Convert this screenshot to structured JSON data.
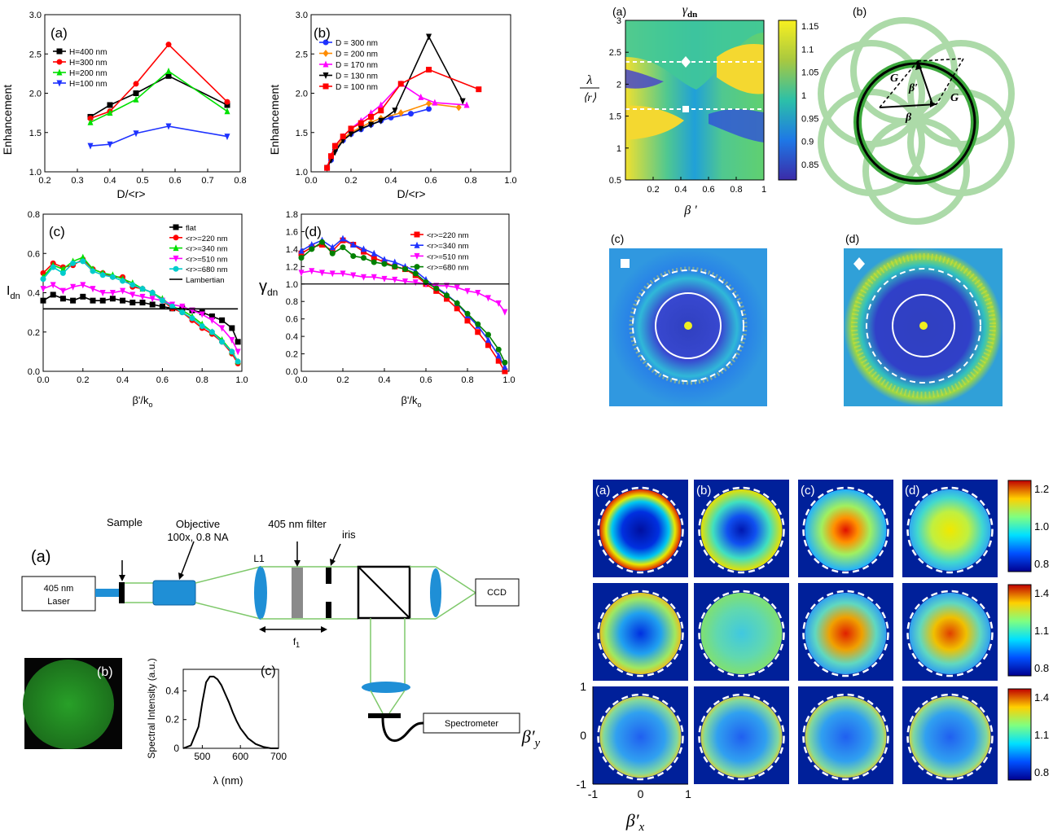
{
  "colors": {
    "red": "#ff0000",
    "black": "#000000",
    "green": "#00e000",
    "blue": "#1e32ff",
    "magenta": "#ff00ff",
    "darkgreen": "#008000",
    "orange": "#ff8c00",
    "cyan": "#00cccc",
    "beam": "#7ec86a",
    "optic": "#1f8fd6",
    "ring": "#9ed49a"
  },
  "chart_data": [
    {
      "panel": "(a)",
      "type": "line",
      "xlabel": "D/<r>",
      "ylabel": "Enhancement",
      "xlim": [
        0.2,
        0.8
      ],
      "ylim": [
        1.0,
        3.0
      ],
      "xticks": [
        "0.2",
        "0.3",
        "0.4",
        "0.5",
        "0.6",
        "0.7",
        "0.8"
      ],
      "yticks": [
        "1.0",
        "1.5",
        "2.0",
        "2.5",
        "3.0"
      ],
      "x": [
        0.34,
        0.4,
        0.48,
        0.58,
        0.76
      ],
      "series": [
        {
          "name": "H=400 nm",
          "color": "#000000",
          "marker": "square",
          "values": [
            1.7,
            1.85,
            2.0,
            2.22,
            1.85
          ]
        },
        {
          "name": "H=300 nm",
          "color": "#ff0000",
          "marker": "circle",
          "values": [
            1.68,
            1.77,
            2.12,
            2.62,
            1.89
          ]
        },
        {
          "name": "H=200 nm",
          "color": "#00e000",
          "marker": "triangle",
          "values": [
            1.63,
            1.75,
            1.92,
            2.28,
            1.77
          ]
        },
        {
          "name": "H=100 nm",
          "color": "#1e32ff",
          "marker": "triangle-down",
          "values": [
            1.33,
            1.35,
            1.49,
            1.58,
            1.45
          ]
        }
      ]
    },
    {
      "panel": "(b)",
      "type": "line",
      "xlabel": "D/<r>",
      "ylabel": "Enhancement",
      "xlim": [
        0.0,
        1.0
      ],
      "ylim": [
        1.0,
        3.0
      ],
      "xticks": [
        "0.0",
        "0.2",
        "0.4",
        "0.6",
        "0.8",
        "1.0"
      ],
      "yticks": [
        "1.0",
        "1.5",
        "2.0",
        "2.5",
        "3.0"
      ],
      "series": [
        {
          "name": "D = 300 nm",
          "color": "#1e32ff",
          "marker": "circle",
          "x": [
            0.08,
            0.1,
            0.12,
            0.16,
            0.2,
            0.25,
            0.3,
            0.35,
            0.4,
            0.5,
            0.59
          ],
          "values": [
            1.05,
            1.15,
            1.28,
            1.4,
            1.48,
            1.54,
            1.6,
            1.65,
            1.69,
            1.74,
            1.8
          ]
        },
        {
          "name": "D = 200 nm",
          "color": "#ff8c00",
          "marker": "diamond",
          "x": [
            0.08,
            0.1,
            0.12,
            0.16,
            0.2,
            0.25,
            0.3,
            0.35,
            0.45,
            0.59,
            0.74
          ],
          "values": [
            1.05,
            1.18,
            1.3,
            1.42,
            1.5,
            1.57,
            1.63,
            1.68,
            1.75,
            1.87,
            1.82
          ]
        },
        {
          "name": "D = 170 nm",
          "color": "#ff00ff",
          "marker": "triangle",
          "x": [
            0.08,
            0.1,
            0.12,
            0.16,
            0.2,
            0.25,
            0.3,
            0.35,
            0.45,
            0.55,
            0.62,
            0.78
          ],
          "values": [
            1.05,
            1.2,
            1.33,
            1.45,
            1.55,
            1.65,
            1.75,
            1.85,
            2.12,
            1.95,
            1.88,
            1.85
          ]
        },
        {
          "name": "D = 130 nm",
          "color": "#000000",
          "marker": "triangle-down",
          "x": [
            0.08,
            0.1,
            0.12,
            0.16,
            0.2,
            0.25,
            0.3,
            0.35,
            0.42,
            0.59,
            0.76
          ],
          "values": [
            1.05,
            1.15,
            1.25,
            1.4,
            1.48,
            1.55,
            1.6,
            1.65,
            1.78,
            2.72,
            1.9
          ]
        },
        {
          "name": "D = 100 nm",
          "color": "#ff0000",
          "marker": "square",
          "x": [
            0.08,
            0.1,
            0.12,
            0.16,
            0.2,
            0.25,
            0.3,
            0.35,
            0.45,
            0.59,
            0.84
          ],
          "values": [
            1.05,
            1.2,
            1.33,
            1.45,
            1.55,
            1.62,
            1.7,
            1.78,
            2.12,
            2.3,
            2.05
          ]
        }
      ]
    },
    {
      "panel": "(c)",
      "type": "line",
      "xlabel": "β'/k₀",
      "ylabel": "I_dn",
      "xlim": [
        0.0,
        1.0
      ],
      "ylim": [
        0.0,
        0.8
      ],
      "xticks": [
        "0.0",
        "0.2",
        "0.4",
        "0.6",
        "0.8",
        "1.0"
      ],
      "yticks": [
        "0.0",
        "0.2",
        "0.4",
        "0.6",
        "0.8"
      ],
      "x": [
        0,
        0.05,
        0.1,
        0.15,
        0.2,
        0.25,
        0.3,
        0.35,
        0.4,
        0.45,
        0.5,
        0.55,
        0.6,
        0.65,
        0.7,
        0.75,
        0.8,
        0.85,
        0.9,
        0.95,
        0.98
      ],
      "series": [
        {
          "name": "flat",
          "color": "#000000",
          "marker": "square",
          "values": [
            0.36,
            0.39,
            0.37,
            0.36,
            0.38,
            0.36,
            0.36,
            0.37,
            0.36,
            0.35,
            0.35,
            0.34,
            0.33,
            0.32,
            0.32,
            0.31,
            0.3,
            0.28,
            0.26,
            0.22,
            0.15
          ]
        },
        {
          "name": "<r>=220 nm",
          "color": "#ff0000",
          "marker": "circle",
          "values": [
            0.5,
            0.55,
            0.53,
            0.54,
            0.57,
            0.52,
            0.5,
            0.48,
            0.48,
            0.43,
            0.42,
            0.4,
            0.36,
            0.32,
            0.3,
            0.26,
            0.22,
            0.19,
            0.15,
            0.09,
            0.04
          ]
        },
        {
          "name": "<r>=340 nm",
          "color": "#00e000",
          "marker": "triangle",
          "values": [
            0.48,
            0.54,
            0.52,
            0.56,
            0.58,
            0.52,
            0.5,
            0.49,
            0.47,
            0.45,
            0.42,
            0.4,
            0.37,
            0.33,
            0.31,
            0.28,
            0.24,
            0.2,
            0.16,
            0.1,
            0.05
          ]
        },
        {
          "name": "<r>=510 nm",
          "color": "#ff00ff",
          "marker": "triangle-down",
          "values": [
            0.42,
            0.44,
            0.41,
            0.43,
            0.44,
            0.42,
            0.4,
            0.4,
            0.41,
            0.39,
            0.38,
            0.37,
            0.36,
            0.34,
            0.33,
            0.31,
            0.29,
            0.26,
            0.22,
            0.16,
            0.1
          ]
        },
        {
          "name": "<r>=680 nm",
          "color": "#00cccc",
          "marker": "circle",
          "values": [
            0.47,
            0.53,
            0.5,
            0.55,
            0.56,
            0.51,
            0.49,
            0.48,
            0.46,
            0.44,
            0.42,
            0.4,
            0.36,
            0.33,
            0.3,
            0.27,
            0.23,
            0.2,
            0.15,
            0.1,
            0.05
          ]
        },
        {
          "name": "Lambertian",
          "color": "#000000",
          "marker": "none",
          "values": [
            0.318,
            0.318,
            0.318,
            0.318,
            0.318,
            0.318,
            0.318,
            0.318,
            0.318,
            0.318,
            0.318,
            0.318,
            0.318,
            0.318,
            0.318,
            0.318,
            0.318,
            0.318,
            0.318,
            0.318,
            0.318
          ]
        }
      ]
    },
    {
      "panel": "(d)",
      "type": "line",
      "xlabel": "β'/k₀",
      "ylabel": "γ_dn",
      "xlim": [
        0.0,
        1.0
      ],
      "ylim": [
        0.0,
        1.8
      ],
      "xticks": [
        "0.0",
        "0.2",
        "0.4",
        "0.6",
        "0.8",
        "1.0"
      ],
      "yticks": [
        "0.0",
        "0.2",
        "0.4",
        "0.6",
        "0.8",
        "1.0",
        "1.2",
        "1.4",
        "1.6",
        "1.8"
      ],
      "x": [
        0,
        0.05,
        0.1,
        0.15,
        0.2,
        0.25,
        0.3,
        0.35,
        0.4,
        0.45,
        0.5,
        0.55,
        0.6,
        0.65,
        0.7,
        0.75,
        0.8,
        0.85,
        0.9,
        0.95,
        0.98
      ],
      "series": [
        {
          "name": "<r>=220 nm",
          "color": "#ff0000",
          "marker": "square",
          "values": [
            1.35,
            1.42,
            1.45,
            1.38,
            1.5,
            1.45,
            1.37,
            1.3,
            1.25,
            1.2,
            1.17,
            1.1,
            1.0,
            0.92,
            0.83,
            0.72,
            0.58,
            0.45,
            0.3,
            0.12,
            0.0
          ]
        },
        {
          "name": "<r>=340 nm",
          "color": "#1e32ff",
          "marker": "triangle",
          "values": [
            1.38,
            1.45,
            1.5,
            1.42,
            1.52,
            1.45,
            1.4,
            1.35,
            1.28,
            1.25,
            1.2,
            1.15,
            1.05,
            0.96,
            0.88,
            0.78,
            0.64,
            0.52,
            0.36,
            0.18,
            0.05
          ]
        },
        {
          "name": "<r>=510 nm",
          "color": "#ff00ff",
          "marker": "triangle-down",
          "values": [
            1.13,
            1.15,
            1.13,
            1.12,
            1.12,
            1.1,
            1.08,
            1.08,
            1.06,
            1.05,
            1.03,
            1.02,
            1.0,
            0.98,
            0.98,
            0.96,
            0.92,
            0.9,
            0.84,
            0.78,
            0.68
          ]
        },
        {
          "name": "<r>=680 nm",
          "color": "#008000",
          "marker": "circle",
          "values": [
            1.3,
            1.4,
            1.48,
            1.35,
            1.42,
            1.32,
            1.3,
            1.25,
            1.23,
            1.2,
            1.17,
            1.12,
            1.02,
            0.95,
            0.87,
            0.78,
            0.66,
            0.54,
            0.42,
            0.25,
            0.1
          ]
        }
      ]
    }
  ],
  "texts": {
    "p_a": "(a)",
    "p_b": "(b)",
    "p_c": "(c)",
    "p_d": "(d)",
    "enh": "Enhancement",
    "dr": "D/<r>",
    "bk": "β'/k",
    "bk_sub": "o",
    "idn": "I",
    "idn_sub": "dn",
    "gdn": "γ",
    "gdn_sub": "dn",
    "map_title": "γ",
    "map_title_sub": "dn",
    "map_xlabel": "β '",
    "map_ylabel_num": "λ",
    "map_ylabel_den": "⟨r⟩",
    "map_xticks": [
      "0.2",
      "0.4",
      "0.6",
      "0.8",
      "1"
    ],
    "map_yticks": [
      "0.5",
      "1",
      "1.5",
      "2",
      "2.5",
      "3"
    ],
    "map_cbar": [
      "1.15",
      "1.1",
      "1.05",
      "1",
      "0.95",
      "0.9",
      "0.85"
    ],
    "ring_G": "G",
    "ring_G2": "G",
    "ring_b": "β",
    "ring_bp": "β′",
    "sample": "Sample",
    "objective1": "Objective",
    "objective2": "100x, 0.8 NA",
    "filter": "405 nm filter",
    "iris": "iris",
    "laser1": "405 nm",
    "laser2": "Laser",
    "ccd": "CCD",
    "L1": "L1",
    "f1": "f",
    "f1_sub": "1",
    "spectrometer": "Spectrometer",
    "spec_ylabel": "Spectral Intensity (a.u.)",
    "spec_xlabel": "λ (nm)",
    "spec_xticks": [
      "500",
      "600",
      "700"
    ],
    "spec_yticks": [
      "0",
      "0.2",
      "0.4"
    ],
    "grid_cbar1": [
      "1.2",
      "1.0",
      "0.8"
    ],
    "grid_cbar2": [
      "1.4",
      "1.1",
      "0.8"
    ],
    "grid_cbar3": [
      "1.4",
      "1.1",
      "0.8"
    ],
    "grid_xlabel": "β′",
    "grid_xlabel_sub": "x",
    "grid_ylabel": "β′",
    "grid_ylabel_sub": "y",
    "grid_xticks": [
      "-1",
      "0",
      "1"
    ],
    "grid_yticks": [
      "1",
      "0",
      "-1"
    ]
  },
  "spectrum": {
    "x": [
      450,
      470,
      490,
      500,
      510,
      520,
      530,
      540,
      550,
      560,
      570,
      580,
      590,
      600,
      620,
      640,
      660,
      680,
      700
    ],
    "y": [
      0.0,
      0.02,
      0.15,
      0.32,
      0.46,
      0.5,
      0.5,
      0.48,
      0.44,
      0.38,
      0.32,
      0.25,
      0.19,
      0.14,
      0.07,
      0.03,
      0.01,
      0.0,
      0.0
    ]
  }
}
